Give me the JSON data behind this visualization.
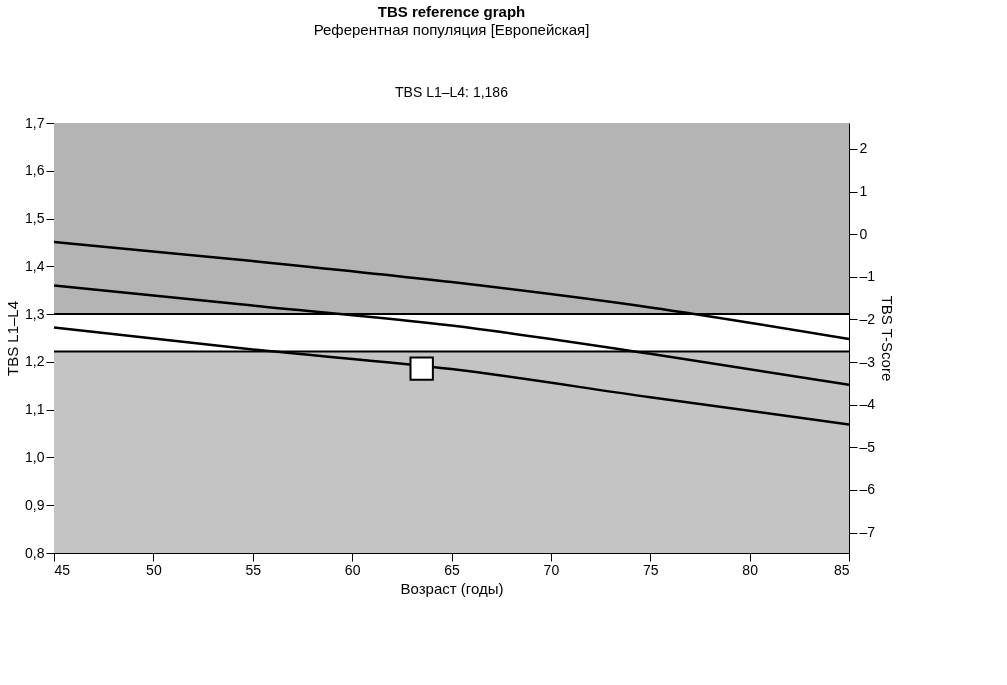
{
  "chart_data": {
    "type": "line",
    "title": "TBS reference graph",
    "subtitle": "Референтная популяция [Европейская]",
    "annotations": [
      "TBS L1–L4: 1,186"
    ],
    "xlabel": "Возраст (годы)",
    "ylabel": "TBS L1–L4",
    "y2label": "TBS T-Score",
    "xlim": [
      45,
      85
    ],
    "xticks": [
      45,
      50,
      55,
      60,
      65,
      70,
      75,
      80,
      85
    ],
    "ylim": [
      0.8,
      1.7
    ],
    "yticks": [
      {
        "value": 0.8,
        "label": "0,8"
      },
      {
        "value": 0.9,
        "label": "0,9"
      },
      {
        "value": 1.0,
        "label": "1,0"
      },
      {
        "value": 1.1,
        "label": "1,1"
      },
      {
        "value": 1.2,
        "label": "1,2"
      },
      {
        "value": 1.3,
        "label": "1,3"
      },
      {
        "value": 1.4,
        "label": "1,4"
      },
      {
        "value": 1.5,
        "label": "1,5"
      },
      {
        "value": 1.6,
        "label": "1,6"
      },
      {
        "value": 1.7,
        "label": "1,7"
      }
    ],
    "y2lim": [
      -7.48,
      2.61
    ],
    "y2ticks": [
      {
        "value": -7,
        "label": "–7"
      },
      {
        "value": -6,
        "label": "–6"
      },
      {
        "value": -5,
        "label": "–5"
      },
      {
        "value": -4,
        "label": "–4"
      },
      {
        "value": -3,
        "label": "–3"
      },
      {
        "value": -2,
        "label": "–2"
      },
      {
        "value": -1,
        "label": "–1"
      },
      0,
      1,
      2
    ],
    "bands": [
      {
        "axis": "y",
        "from": 0.8,
        "to": 1.222,
        "color": "#c4c4c4"
      },
      {
        "axis": "y",
        "from": 1.222,
        "to": 1.3,
        "color": "#ffffff"
      },
      {
        "axis": "y",
        "from": 1.3,
        "to": 1.7,
        "color": "#b4b4b4"
      }
    ],
    "ref_lines": [
      {
        "axis": "y",
        "value": 1.3,
        "color": "#000000"
      },
      {
        "axis": "y",
        "value": 1.222,
        "color": "#000000"
      }
    ],
    "x": [
      45,
      55,
      65,
      75,
      85
    ],
    "series": [
      {
        "color": "#000000",
        "values": [
          1.451,
          1.411,
          1.367,
          1.314,
          1.248
        ]
      },
      {
        "color": "#000000",
        "values": [
          1.36,
          1.318,
          1.276,
          1.217,
          1.152
        ]
      },
      {
        "color": "#000000",
        "values": [
          1.272,
          1.226,
          1.185,
          1.126,
          1.069
        ]
      },
      {
        "type": "scatter",
        "marker": "square",
        "color": "#ffffff",
        "x": [
          63.5
        ],
        "values": [
          1.186
        ]
      }
    ],
    "line_style": "solid"
  }
}
